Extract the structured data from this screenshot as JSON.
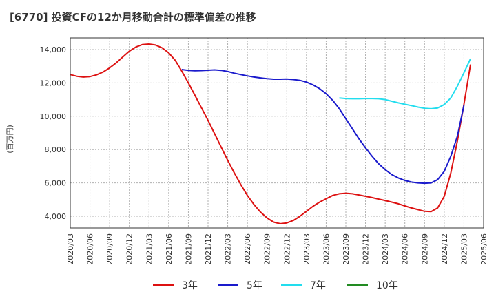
{
  "chart_data": {
    "type": "line",
    "title": "[6770]  投資CFの12か月移動合計の標準偏差の推移",
    "ylabel": "(百万円)",
    "xlabel": "",
    "ylim": [
      3300,
      14700
    ],
    "yticks": [
      4000,
      6000,
      8000,
      10000,
      12000,
      14000
    ],
    "ytick_labels": [
      "4,000",
      "6,000",
      "8,000",
      "10,000",
      "12,000",
      "14,000"
    ],
    "x_range": [
      "2020/03",
      "2025/06"
    ],
    "xtick_labels": [
      "2020/03",
      "2020/06",
      "2020/09",
      "2020/12",
      "2021/03",
      "2021/06",
      "2021/09",
      "2021/12",
      "2022/03",
      "2022/06",
      "2022/09",
      "2022/12",
      "2023/03",
      "2023/06",
      "2023/09",
      "2023/12",
      "2024/03",
      "2024/06",
      "2024/09",
      "2024/12",
      "2025/03",
      "2025/06"
    ],
    "grid": true,
    "legend_position": "bottom",
    "series": [
      {
        "name": "3年",
        "color": "#dd1111",
        "points": [
          [
            "2020/03",
            12500
          ],
          [
            "2020/04",
            12400
          ],
          [
            "2020/05",
            12350
          ],
          [
            "2020/06",
            12380
          ],
          [
            "2020/07",
            12480
          ],
          [
            "2020/08",
            12650
          ],
          [
            "2020/09",
            12900
          ],
          [
            "2020/10",
            13200
          ],
          [
            "2020/11",
            13550
          ],
          [
            "2020/12",
            13900
          ],
          [
            "2021/01",
            14150
          ],
          [
            "2021/02",
            14300
          ],
          [
            "2021/03",
            14330
          ],
          [
            "2021/04",
            14270
          ],
          [
            "2021/05",
            14100
          ],
          [
            "2021/06",
            13800
          ],
          [
            "2021/07",
            13350
          ],
          [
            "2021/08",
            12700
          ],
          [
            "2021/09",
            12000
          ],
          [
            "2021/10",
            11250
          ],
          [
            "2021/11",
            10500
          ],
          [
            "2021/12",
            9750
          ],
          [
            "2022/01",
            8950
          ],
          [
            "2022/02",
            8150
          ],
          [
            "2022/03",
            7350
          ],
          [
            "2022/04",
            6600
          ],
          [
            "2022/05",
            5900
          ],
          [
            "2022/06",
            5250
          ],
          [
            "2022/07",
            4700
          ],
          [
            "2022/08",
            4250
          ],
          [
            "2022/09",
            3900
          ],
          [
            "2022/10",
            3650
          ],
          [
            "2022/11",
            3550
          ],
          [
            "2022/12",
            3600
          ],
          [
            "2023/01",
            3750
          ],
          [
            "2023/02",
            4000
          ],
          [
            "2023/03",
            4300
          ],
          [
            "2023/04",
            4600
          ],
          [
            "2023/05",
            4850
          ],
          [
            "2023/06",
            5050
          ],
          [
            "2023/07",
            5250
          ],
          [
            "2023/08",
            5350
          ],
          [
            "2023/09",
            5380
          ],
          [
            "2023/10",
            5350
          ],
          [
            "2023/11",
            5280
          ],
          [
            "2023/12",
            5200
          ],
          [
            "2024/01",
            5120
          ],
          [
            "2024/02",
            5030
          ],
          [
            "2024/03",
            4950
          ],
          [
            "2024/04",
            4850
          ],
          [
            "2024/05",
            4750
          ],
          [
            "2024/06",
            4620
          ],
          [
            "2024/07",
            4500
          ],
          [
            "2024/08",
            4400
          ],
          [
            "2024/09",
            4300
          ],
          [
            "2024/10",
            4280
          ],
          [
            "2024/11",
            4500
          ],
          [
            "2024/12",
            5200
          ],
          [
            "2025/01",
            6600
          ],
          [
            "2025/02",
            8500
          ],
          [
            "2025/03",
            10700
          ],
          [
            "2025/04",
            13100
          ]
        ]
      },
      {
        "name": "5年",
        "color": "#1a1acc",
        "points": [
          [
            "2021/08",
            12800
          ],
          [
            "2021/09",
            12750
          ],
          [
            "2021/10",
            12730
          ],
          [
            "2021/11",
            12740
          ],
          [
            "2021/12",
            12760
          ],
          [
            "2022/01",
            12780
          ],
          [
            "2022/02",
            12750
          ],
          [
            "2022/03",
            12680
          ],
          [
            "2022/04",
            12580
          ],
          [
            "2022/05",
            12500
          ],
          [
            "2022/06",
            12420
          ],
          [
            "2022/07",
            12350
          ],
          [
            "2022/08",
            12300
          ],
          [
            "2022/09",
            12250
          ],
          [
            "2022/10",
            12220
          ],
          [
            "2022/11",
            12220
          ],
          [
            "2022/12",
            12230
          ],
          [
            "2023/01",
            12200
          ],
          [
            "2023/02",
            12150
          ],
          [
            "2023/03",
            12050
          ],
          [
            "2023/04",
            11880
          ],
          [
            "2023/05",
            11650
          ],
          [
            "2023/06",
            11350
          ],
          [
            "2023/07",
            10950
          ],
          [
            "2023/08",
            10450
          ],
          [
            "2023/09",
            9850
          ],
          [
            "2023/10",
            9250
          ],
          [
            "2023/11",
            8650
          ],
          [
            "2023/12",
            8100
          ],
          [
            "2024/01",
            7600
          ],
          [
            "2024/02",
            7150
          ],
          [
            "2024/03",
            6800
          ],
          [
            "2024/04",
            6500
          ],
          [
            "2024/05",
            6300
          ],
          [
            "2024/06",
            6150
          ],
          [
            "2024/07",
            6050
          ],
          [
            "2024/08",
            6000
          ],
          [
            "2024/09",
            5980
          ],
          [
            "2024/10",
            6000
          ],
          [
            "2024/11",
            6200
          ],
          [
            "2024/12",
            6700
          ],
          [
            "2025/01",
            7600
          ],
          [
            "2025/02",
            8800
          ],
          [
            "2025/03",
            10650
          ]
        ]
      },
      {
        "name": "7年",
        "color": "#22ddee",
        "points": [
          [
            "2023/08",
            11100
          ],
          [
            "2023/09",
            11060
          ],
          [
            "2023/10",
            11050
          ],
          [
            "2023/11",
            11050
          ],
          [
            "2023/12",
            11060
          ],
          [
            "2024/01",
            11060
          ],
          [
            "2024/02",
            11050
          ],
          [
            "2024/03",
            11000
          ],
          [
            "2024/04",
            10900
          ],
          [
            "2024/05",
            10800
          ],
          [
            "2024/06",
            10720
          ],
          [
            "2024/07",
            10640
          ],
          [
            "2024/08",
            10550
          ],
          [
            "2024/09",
            10480
          ],
          [
            "2024/10",
            10450
          ],
          [
            "2024/11",
            10500
          ],
          [
            "2024/12",
            10700
          ],
          [
            "2025/01",
            11100
          ],
          [
            "2025/02",
            11800
          ],
          [
            "2025/03",
            12600
          ],
          [
            "2025/04",
            13450
          ]
        ]
      },
      {
        "name": "10年",
        "color": "#228b22",
        "points": []
      }
    ]
  }
}
